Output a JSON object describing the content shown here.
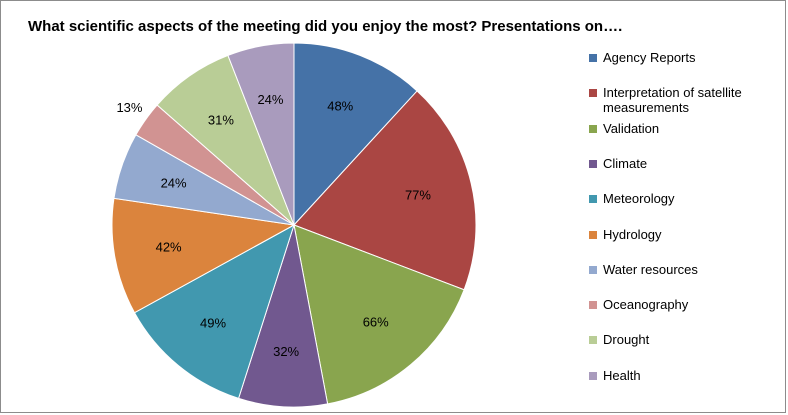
{
  "chart_data": {
    "type": "pie",
    "title": "What scientific aspects of the meeting did you enjoy the most?  Presentations on….",
    "categories": [
      "Agency Reports",
      "Interpretation of satellite measurements",
      "Validation",
      "Climate",
      "Meteorology",
      "Hydrology",
      "Water resources",
      "Oceanography",
      "Drought",
      "Health"
    ],
    "values": [
      48,
      77,
      66,
      32,
      49,
      42,
      24,
      13,
      31,
      24
    ],
    "labels": [
      "48%",
      "77%",
      "66%",
      "32%",
      "49%",
      "42%",
      "24%",
      "13%",
      "31%",
      "24%"
    ],
    "colors": [
      "#4572a7",
      "#aa4643",
      "#89a54e",
      "#71588f",
      "#4198af",
      "#db843d",
      "#93a9cf",
      "#d19392",
      "#b9cd96",
      "#a99bbd"
    ],
    "legend_position": "right",
    "start_angle": "12 o'clock, clockwise"
  }
}
